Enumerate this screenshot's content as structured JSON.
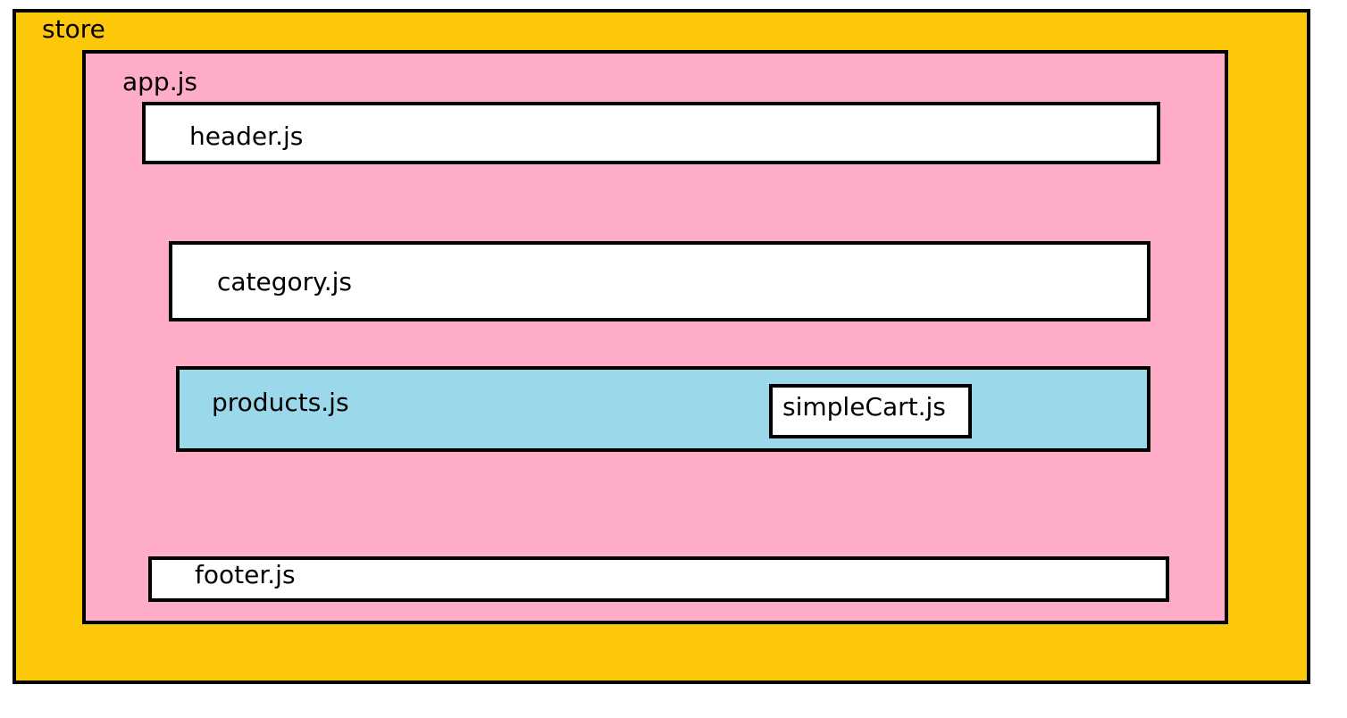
{
  "colors": {
    "store_fill": "#FEC80A",
    "app_fill": "#FFACC8",
    "component_fill": "#FFFFFF",
    "products_fill": "#9BD8EA",
    "border": "#000000"
  },
  "store": {
    "label": "store"
  },
  "app": {
    "label": "app.js"
  },
  "components": {
    "header": {
      "label": "header.js"
    },
    "category": {
      "label": "category.js"
    },
    "products": {
      "label": "products.js",
      "simple_cart": {
        "label": "simpleCart.js"
      }
    },
    "footer": {
      "label": "footer.js"
    }
  }
}
